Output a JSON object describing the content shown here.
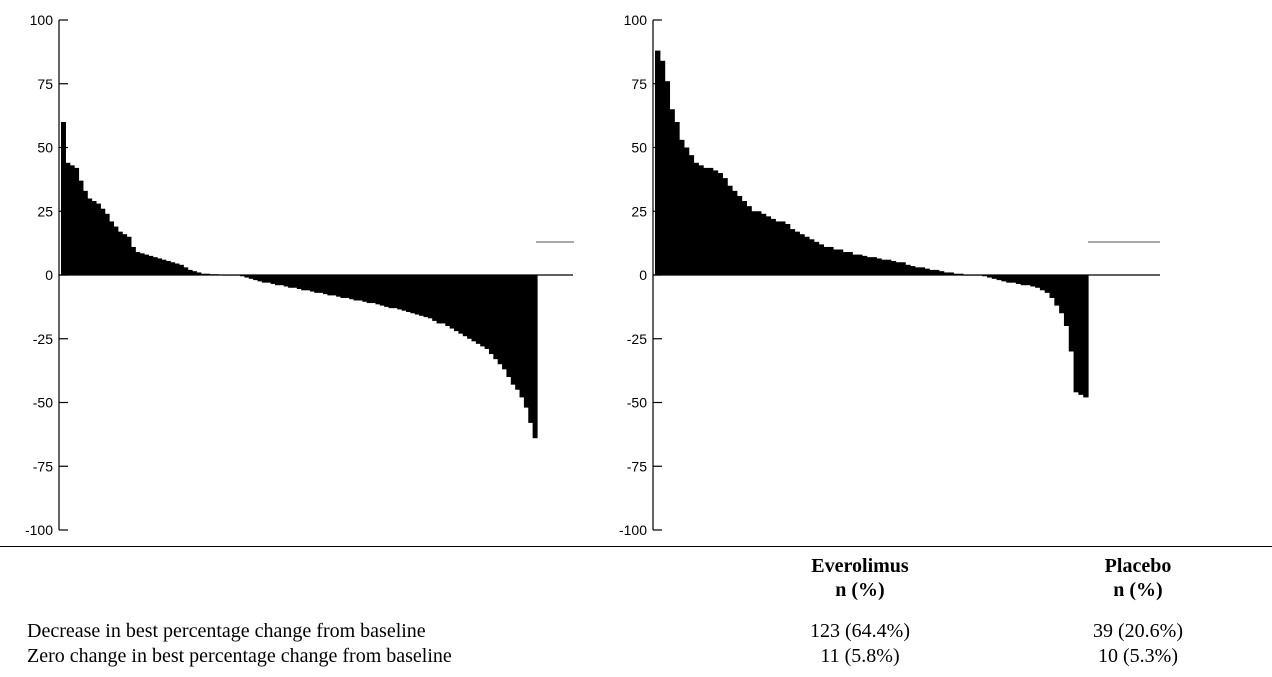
{
  "chart_data": [
    {
      "type": "bar",
      "ylim": [
        -100,
        100
      ],
      "yticks": [
        100,
        75,
        50,
        25,
        0,
        -25,
        -50,
        -75,
        -100
      ],
      "grid": false,
      "legend_marker": true,
      "values": [
        60,
        44,
        43,
        42,
        37,
        33,
        30,
        29,
        28,
        26,
        24,
        21,
        19,
        17,
        16,
        15,
        11,
        9,
        8.5,
        8,
        7.5,
        7,
        6.5,
        6,
        5.5,
        5,
        4.5,
        4,
        3,
        2,
        1.5,
        1,
        0.5,
        0.5,
        0.3,
        0.3,
        0.2,
        0,
        0,
        0,
        0,
        -0.5,
        -1,
        -1.5,
        -2,
        -2.5,
        -3,
        -3,
        -3.5,
        -4,
        -4,
        -4.5,
        -5,
        -5,
        -5.5,
        -6,
        -6,
        -6.5,
        -7,
        -7,
        -7.5,
        -8,
        -8,
        -8.5,
        -9,
        -9,
        -9.5,
        -10,
        -10,
        -10.5,
        -11,
        -11,
        -11.5,
        -12,
        -12.5,
        -13,
        -13,
        -13.5,
        -14,
        -14.5,
        -15,
        -15.5,
        -16,
        -16.5,
        -17,
        -18,
        -19,
        -19,
        -20,
        -21,
        -22,
        -23,
        -24,
        -25,
        -26,
        -27,
        -28,
        -29,
        -31,
        -33,
        -35,
        -37,
        -40,
        -43,
        -45,
        -48,
        -52,
        -58,
        -64
      ]
    },
    {
      "type": "bar",
      "ylim": [
        -100,
        100
      ],
      "yticks": [
        100,
        75,
        50,
        25,
        0,
        -25,
        -50,
        -75,
        -100
      ],
      "grid": false,
      "legend_marker": true,
      "values": [
        88,
        84,
        76,
        65,
        60,
        53,
        50,
        47,
        44,
        43,
        42,
        42,
        41,
        40,
        38,
        35,
        33,
        31,
        29,
        27,
        25,
        25,
        24,
        23,
        22,
        21,
        21,
        20,
        18,
        17,
        16,
        15,
        14,
        13,
        12,
        11,
        11,
        10,
        10,
        9,
        9,
        8,
        8,
        7.5,
        7,
        7,
        6.5,
        6,
        6,
        5.5,
        5,
        5,
        4,
        3.5,
        3,
        3,
        2.5,
        2,
        2,
        1.5,
        1,
        1,
        0.5,
        0.5,
        0,
        0,
        0,
        0,
        -0.5,
        -1,
        -1.5,
        -2,
        -2.5,
        -3,
        -3,
        -3.5,
        -4,
        -4,
        -4.5,
        -5,
        -6,
        -7,
        -9,
        -12,
        -15,
        -20,
        -30,
        -46,
        -47,
        -48
      ]
    }
  ],
  "table": {
    "col_headers": [
      {
        "line1": "Everolimus",
        "line2": "n (%)"
      },
      {
        "line1": "Placebo",
        "line2": "n (%)"
      }
    ],
    "rows": [
      {
        "label": "Decrease in best percentage change from baseline",
        "values": [
          "123 (64.4%)",
          "39 (20.6%)"
        ]
      },
      {
        "label": "Zero change in best percentage change from baseline",
        "values": [
          "11 (5.8%)",
          "10 (5.3%)"
        ]
      }
    ]
  }
}
